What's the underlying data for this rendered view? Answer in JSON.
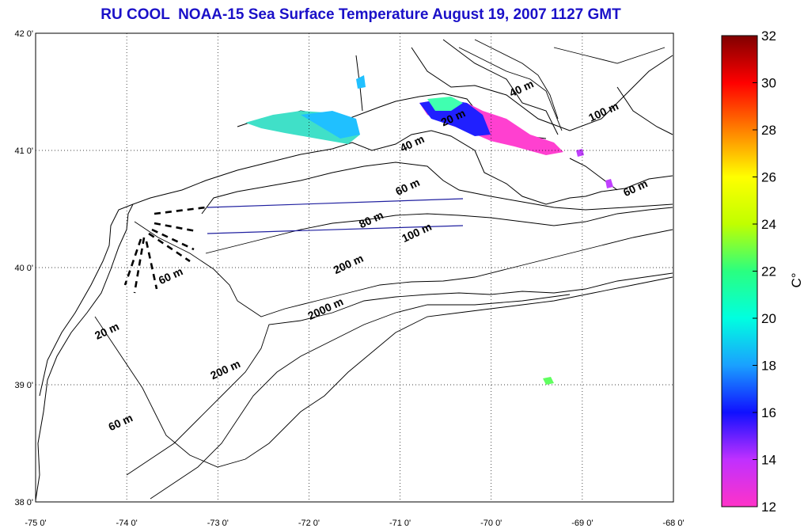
{
  "title": "RU COOL  NOAA-15 Sea Surface Temperature August 19, 2007 1127 GMT",
  "map": {
    "lon_range": [
      -75,
      -68
    ],
    "lat_range": [
      38,
      42
    ],
    "x_ticks": [
      "-75 0'",
      "-74 0'",
      "-73 0'",
      "-72 0'",
      "-71 0'",
      "-70 0'",
      "-69 0'",
      "-68 0'"
    ],
    "y_ticks": [
      "42 0'",
      "41 0'",
      "40 0'",
      "39 0'",
      "38 0'"
    ],
    "grid": "dotted"
  },
  "isobath_labels": [
    {
      "text": "40 m",
      "lon": -69.65,
      "lat": 41.5
    },
    {
      "text": "100 m",
      "lon": -68.75,
      "lat": 41.3
    },
    {
      "text": "20 m",
      "lon": -70.4,
      "lat": 41.25
    },
    {
      "text": "40 m",
      "lon": -70.85,
      "lat": 41.03
    },
    {
      "text": "60 m",
      "lon": -70.9,
      "lat": 40.66
    },
    {
      "text": "60 m",
      "lon": -68.4,
      "lat": 40.65
    },
    {
      "text": "80 m",
      "lon": -71.3,
      "lat": 40.38
    },
    {
      "text": "100 m",
      "lon": -70.8,
      "lat": 40.27
    },
    {
      "text": "200 m",
      "lon": -71.55,
      "lat": 40.0
    },
    {
      "text": "60 m",
      "lon": -73.5,
      "lat": 39.9
    },
    {
      "text": "2000 m",
      "lon": -71.8,
      "lat": 39.62
    },
    {
      "text": "20 m",
      "lon": -74.2,
      "lat": 39.43
    },
    {
      "text": "200 m",
      "lon": -72.9,
      "lat": 39.1
    },
    {
      "text": "60 m",
      "lon": -74.05,
      "lat": 38.65
    }
  ],
  "colorbar": {
    "label": "C°",
    "range": [
      12,
      32
    ],
    "ticks": [
      "32",
      "30",
      "28",
      "26",
      "24",
      "22",
      "20",
      "18",
      "16",
      "14",
      "12"
    ],
    "colors": [
      "#ff33c8",
      "#c030ff",
      "#1010ff",
      "#1aa0ff",
      "#00ffe0",
      "#2aff80",
      "#c0ff00",
      "#ffff00",
      "#ff8000",
      "#ff0000",
      "#800000"
    ]
  }
}
